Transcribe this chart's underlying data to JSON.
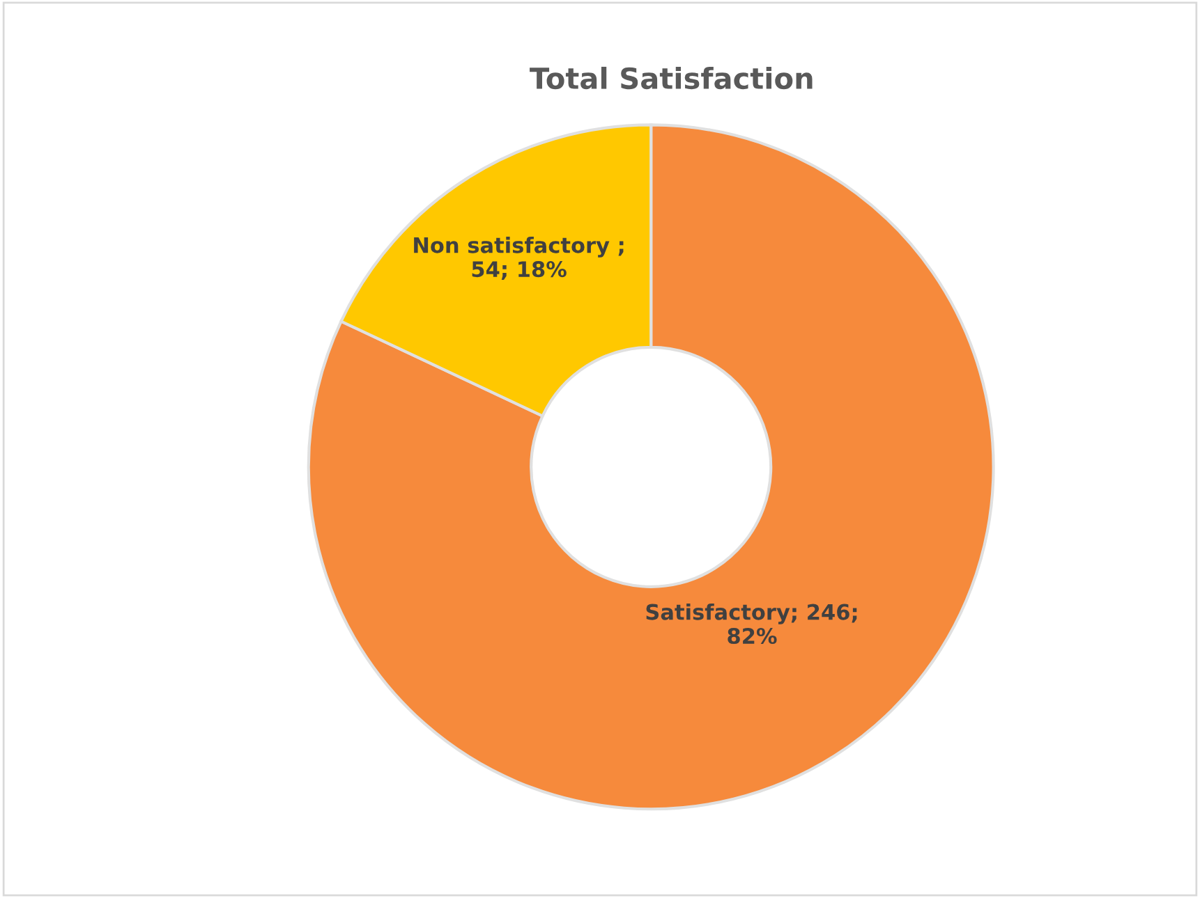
{
  "chart_data": {
    "type": "donut",
    "title": "Total Satisfaction",
    "categories": [
      "Satisfactory",
      "Non satisfactory"
    ],
    "values": [
      246,
      54
    ],
    "colors": [
      "#f68a3c",
      "#ffc800"
    ],
    "value_labels": [
      "; 246;\n82%",
      " ;\n54; 18%"
    ],
    "legend": false
  }
}
